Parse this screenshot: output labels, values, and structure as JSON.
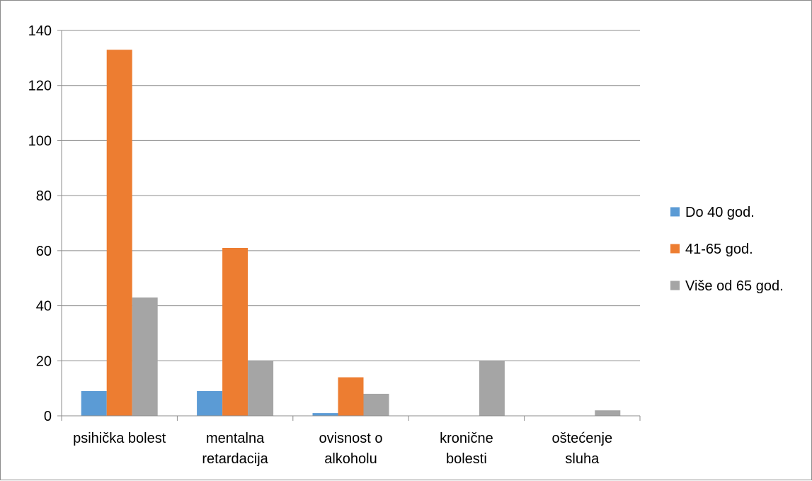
{
  "chart_data": {
    "type": "bar",
    "title": "",
    "xlabel": "",
    "ylabel": "",
    "categories": [
      [
        "psihička bolest"
      ],
      [
        "mentalna",
        "retardacija"
      ],
      [
        "ovisnost o",
        "alkoholu"
      ],
      [
        "kronične",
        "bolesti"
      ],
      [
        "oštećenje",
        "sluha"
      ]
    ],
    "series": [
      {
        "name": "Do 40 god.",
        "color": "#5b9bd5",
        "values": [
          9,
          9,
          1,
          0,
          0
        ]
      },
      {
        "name": "41-65 god.",
        "color": "#ed7d31",
        "values": [
          133,
          61,
          14,
          0,
          0
        ]
      },
      {
        "name": "Više od 65 god.",
        "color": "#a5a5a5",
        "values": [
          43,
          20,
          8,
          20,
          2
        ]
      }
    ],
    "ylim": [
      0,
      140
    ],
    "yticks": [
      0,
      20,
      40,
      60,
      80,
      100,
      120,
      140
    ],
    "grid": true,
    "legend_position": "right"
  }
}
